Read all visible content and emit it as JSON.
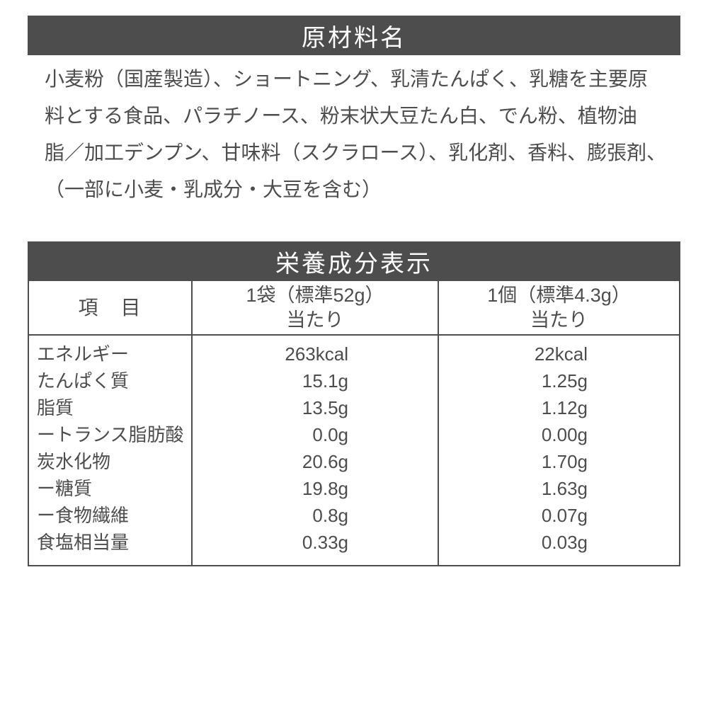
{
  "colors": {
    "band_bg": "#4d4d4d",
    "band_text": "#ffffff",
    "text": "#4d4d4d",
    "border": "#4d4d4d",
    "page_bg": "#ffffff"
  },
  "ingredients": {
    "title": "原材料名",
    "lines": [
      "小麦粉（国産製造）、ショートニング、乳清たんぱく、乳糖を主要原",
      "料とする食品、パラチノース、粉末状大豆たん白、でん粉、植物油",
      "脂／加工デンプン、甘味料（スクラロース）、乳化剤、香料、膨張剤、",
      "（一部に小麦・乳成分・大豆を含む）"
    ]
  },
  "nutrition": {
    "title": "栄養成分表示",
    "columns": {
      "item": "項　目",
      "per_bag_line1": "1袋（標準52g）",
      "per_bag_line2": "当たり",
      "per_piece_line1": "1個（標準4.3g）",
      "per_piece_line2": "当たり"
    },
    "rows": [
      {
        "label": "エネルギー",
        "per_bag": "263kcal",
        "per_piece": "22kcal"
      },
      {
        "label": "たんぱく質",
        "per_bag": "15.1g",
        "per_piece": "1.25g"
      },
      {
        "label": "脂質",
        "per_bag": "13.5g",
        "per_piece": "1.12g"
      },
      {
        "label": "ートランス脂肪酸",
        "per_bag": "0.0g",
        "per_piece": "0.00g"
      },
      {
        "label": "炭水化物",
        "per_bag": "20.6g",
        "per_piece": "1.70g"
      },
      {
        "label": "ー糖質",
        "per_bag": "19.8g",
        "per_piece": "1.63g"
      },
      {
        "label": "ー食物繊維",
        "per_bag": "0.8g",
        "per_piece": "0.07g"
      },
      {
        "label": "食塩相当量",
        "per_bag": "0.33g",
        "per_piece": "0.03g"
      }
    ]
  }
}
